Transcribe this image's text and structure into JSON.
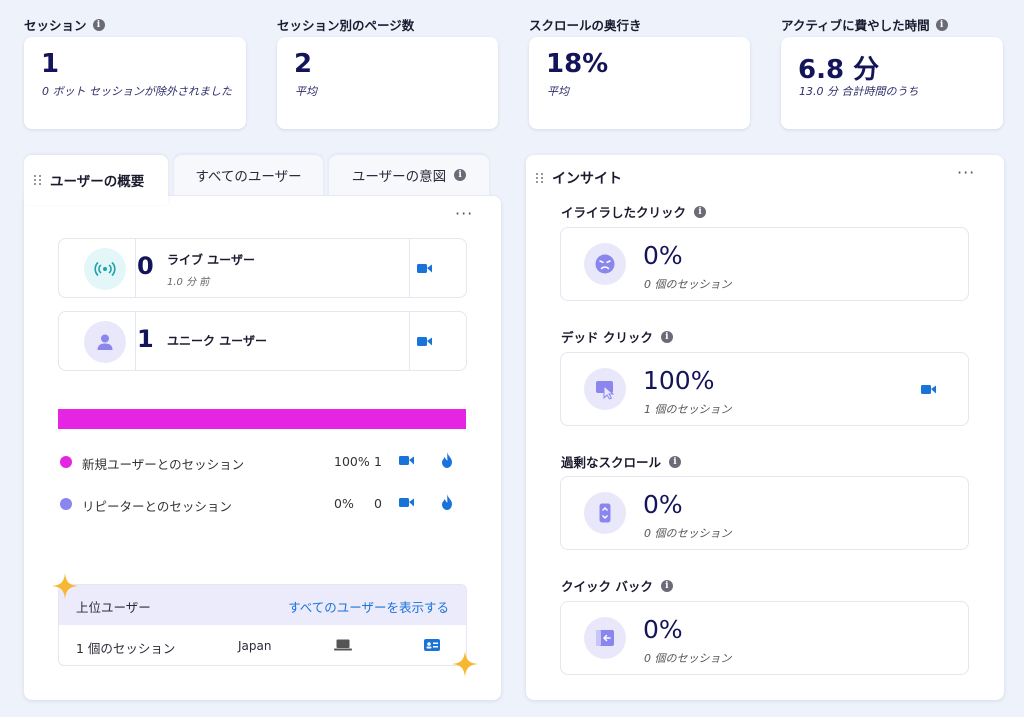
{
  "metrics": [
    {
      "label": "セッション",
      "info": true,
      "value": "1",
      "sub": "0 ボット セッションが除外されました"
    },
    {
      "label": "セッション別のページ数",
      "info": false,
      "value": "2",
      "sub": "平均"
    },
    {
      "label": "スクロールの奥行き",
      "info": false,
      "value": "18%",
      "sub": "平均"
    },
    {
      "label": "アクティブに費やした時間",
      "info": true,
      "value": "6.8 分",
      "sub": "13.0 分 合計時間のうち"
    }
  ],
  "tabs": {
    "overview": "ユーザーの概要",
    "all_users": "すべてのユーザー",
    "intent": "ユーザーの意図"
  },
  "menu_glyph": "···",
  "info_glyph": "i",
  "users": {
    "live": {
      "count": "0",
      "title": "ライブ ユーザー",
      "sub": "1.0 分 前"
    },
    "unique": {
      "count": "1",
      "title": "ユニーク ユーザー"
    }
  },
  "new_vs_returning": {
    "new_fraction": 1.0,
    "legend": [
      {
        "label": "新規ユーザーとのセッション",
        "pct": "100%",
        "count": "1",
        "color": "#e625e2"
      },
      {
        "label": "リピーターとのセッション",
        "pct": "0%",
        "count": "0",
        "color": "#8a86ee"
      }
    ]
  },
  "top_users": {
    "title": "上位ユーザー",
    "link": "すべてのユーザーを表示する",
    "row": {
      "sessions": "1 個のセッション",
      "country": "Japan"
    }
  },
  "insights": {
    "title": "インサイト",
    "items": [
      {
        "label": "イライラしたクリック",
        "value": "0%",
        "sub": "0 個のセッション",
        "icon": "angry-face-icon",
        "video": false
      },
      {
        "label": "デッド クリック",
        "value": "100%",
        "sub": "1 個のセッション",
        "icon": "dead-click-icon",
        "video": true
      },
      {
        "label": "過剰なスクロール",
        "value": "0%",
        "sub": "0 個のセッション",
        "icon": "scroll-icon",
        "video": false
      },
      {
        "label": "クイック バック",
        "value": "0%",
        "sub": "0 個のセッション",
        "icon": "quick-back-icon",
        "video": false
      }
    ]
  },
  "colors": {
    "accent_blue": "#1a73d9",
    "magenta": "#e625e2",
    "lavender": "#8a86ee",
    "sparkle": "#f7b733"
  }
}
